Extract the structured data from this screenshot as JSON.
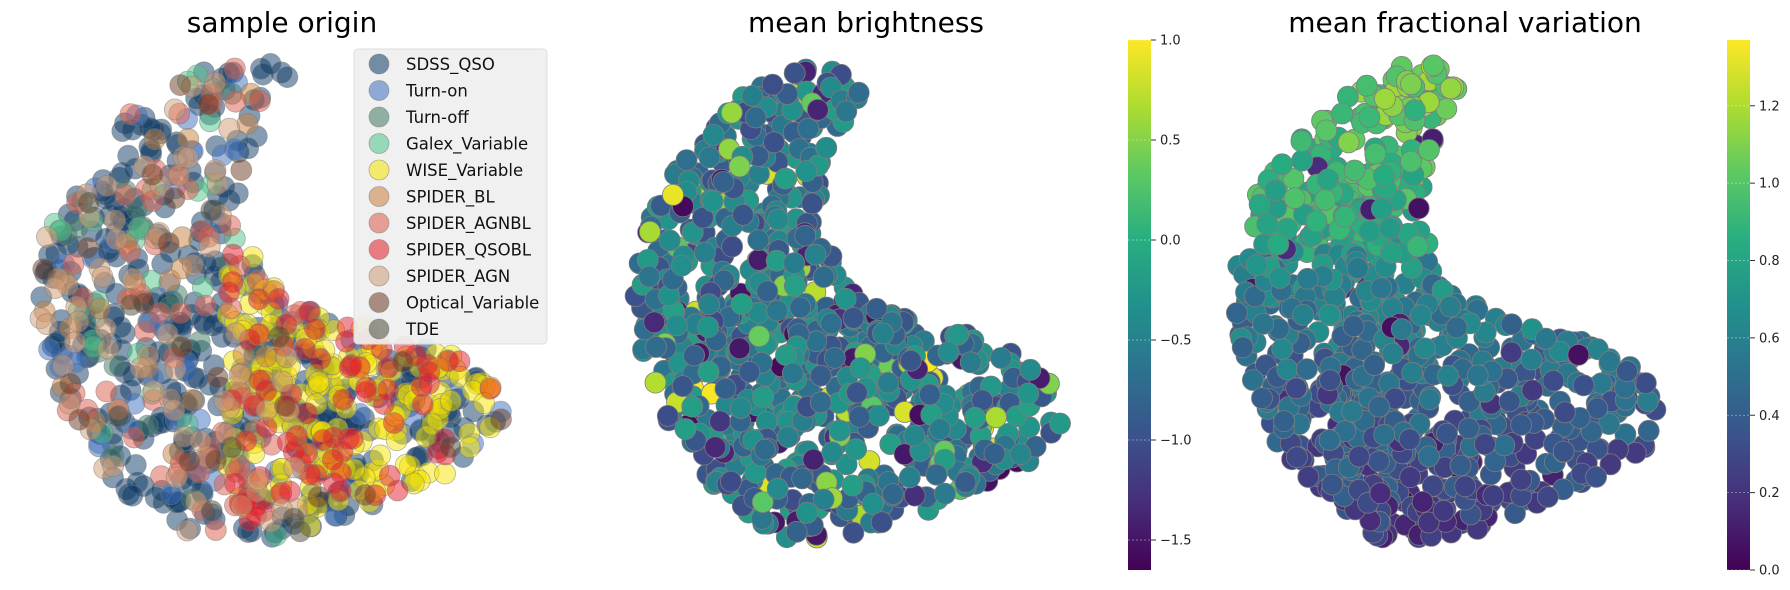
{
  "chart_data": [
    {
      "type": "scatter",
      "title": "sample origin",
      "grid": false,
      "axes_visible": false,
      "legend_position": "top-right",
      "marker_alpha": 0.5,
      "series": [
        {
          "name": "SDSS_QSO",
          "color": "#0b3a66",
          "point_count": 420,
          "region": "body"
        },
        {
          "name": "Turn-on",
          "color": "#3e6fbf",
          "point_count": 60,
          "region": "body"
        },
        {
          "name": "Turn-off",
          "color": "#3f7a63",
          "point_count": 25,
          "region": "left"
        },
        {
          "name": "Galex_Variable",
          "color": "#4fc48a",
          "point_count": 25,
          "region": "left"
        },
        {
          "name": "WISE_Variable",
          "color": "#f5e400",
          "point_count": 170,
          "region": "right"
        },
        {
          "name": "SPIDER_BL",
          "color": "#c9803c",
          "point_count": 25,
          "region": "left"
        },
        {
          "name": "SPIDER_AGNBL",
          "color": "#dd5b4a",
          "point_count": 60,
          "region": "left"
        },
        {
          "name": "SPIDER_QSOBL",
          "color": "#e41c2a",
          "point_count": 80,
          "region": "right"
        },
        {
          "name": "SPIDER_AGN",
          "color": "#d09a72",
          "point_count": 70,
          "region": "left"
        },
        {
          "name": "Optical_Variable",
          "color": "#6b3a22",
          "point_count": 20,
          "region": "body"
        },
        {
          "name": "TDE",
          "color": "#4a4a38",
          "point_count": 10,
          "region": "body"
        }
      ]
    },
    {
      "type": "scatter",
      "title": "mean brightness",
      "grid": false,
      "axes_visible": false,
      "colormap": "viridis",
      "point_count": 900,
      "colorbar": {
        "vmin": -1.65,
        "vmax": 1.0,
        "ticks": [
          1.0,
          0.5,
          0.0,
          -0.5,
          -1.0,
          -1.5
        ],
        "tick_labels": [
          "1.0",
          "0.5",
          "0.0",
          "−0.5",
          "−1.0",
          "−1.5"
        ]
      },
      "value_trend": "mostly between -1.0 and 0.0, scattered outliers up to 1.0 and down to -1.6"
    },
    {
      "type": "scatter",
      "title": "mean fractional variation",
      "grid": false,
      "axes_visible": false,
      "colormap": "viridis",
      "point_count": 900,
      "colorbar": {
        "vmin": 0.0,
        "vmax": 1.37,
        "ticks": [
          1.2,
          1.0,
          0.8,
          0.6,
          0.4,
          0.2,
          0.0
        ],
        "tick_labels": [
          "1.2",
          "1.0",
          "0.8",
          "0.6",
          "0.4",
          "0.2",
          "0.0"
        ]
      },
      "value_trend": "higher (0.8-1.3) in the upper arm, lower (0.2-0.5) toward the bottom and left edge"
    }
  ]
}
